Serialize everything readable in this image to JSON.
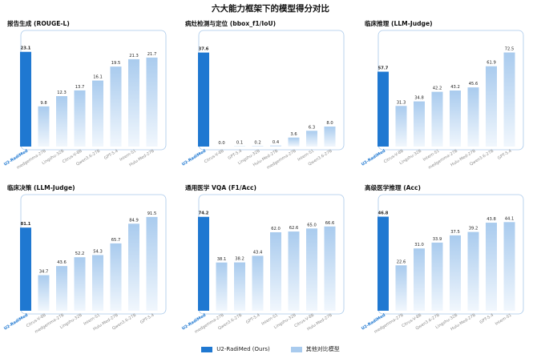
{
  "title": "六大能力框架下的模型得分对比",
  "colors": {
    "ours": "#1f78d1",
    "other_top": "#a9cbee",
    "other_bottom": "#f1f7fd",
    "frame": "#a8c8ea"
  },
  "legend": {
    "ours": "U2-RadiMed (Ours)",
    "other": "其他对比模型"
  },
  "chart_data": [
    {
      "type": "bar",
      "title": "报告生成 (ROUGE-L)",
      "categories": [
        "U2-RadiMed",
        "medgemma-27B",
        "Lingshu-32B",
        "Citrus-V-8B",
        "Qwen3.6-27B",
        "GPT-5.4",
        "Intern-S1",
        "Hulu-Med-27B"
      ],
      "values": [
        23.1,
        9.8,
        12.3,
        13.7,
        16.1,
        19.5,
        21.3,
        21.7
      ],
      "labels": [
        "23.1",
        "9.8",
        "12.3",
        "13.7",
        "16.1",
        "19.5",
        "21.3",
        "21.7"
      ],
      "ylim": [
        0,
        25
      ]
    },
    {
      "type": "bar",
      "title": "病灶检测与定位 (bbox_f1/IoU)",
      "categories": [
        "U2-RadiMed",
        "Citrus-V-8B",
        "GPT-5.4",
        "Lingshu-32B",
        "Hulu-Med-27B",
        "medgemma-27B",
        "Intern-S1",
        "Qwen3.6-27B"
      ],
      "values": [
        37.6,
        0.0,
        0.1,
        0.2,
        0.4,
        3.6,
        6.3,
        8.0
      ],
      "labels": [
        "37.6",
        "0.0",
        "0.1",
        "0.2",
        "0.4",
        "3.6",
        "6.3",
        "8.0"
      ],
      "ylim": [
        0,
        41
      ]
    },
    {
      "type": "bar",
      "title": "临床推理 (LLM-Judge)",
      "categories": [
        "U2-RadiMed",
        "Citrus-V-8B",
        "Lingshu-32B",
        "Intern-S1",
        "medgemma-27B",
        "Hulu-Med-27B",
        "Qwen3.6-27B",
        "GPT-5.4"
      ],
      "values": [
        57.7,
        31.3,
        34.8,
        42.2,
        43.2,
        45.6,
        61.9,
        72.5
      ],
      "labels": [
        "57.7",
        "31.3",
        "34.8",
        "42.2",
        "43.2",
        "45.6",
        "61.9",
        "72.5"
      ],
      "ylim": [
        0,
        79
      ]
    },
    {
      "type": "bar",
      "title": "临床决策 (LLM-Judge)",
      "categories": [
        "U2-RadiMed",
        "Citrus-V-8B",
        "medgemma-27B",
        "Lingshu-32B",
        "Intern-S1",
        "Hulu-Med-27B",
        "Qwen3.6-27B",
        "GPT-5.4"
      ],
      "values": [
        81.1,
        34.7,
        43.6,
        52.2,
        54.3,
        65.7,
        84.9,
        91.5
      ],
      "labels": [
        "81.1",
        "34.7",
        "43.6",
        "52.2",
        "54.3",
        "65.7",
        "84.9",
        "91.5"
      ],
      "ylim": [
        0,
        100
      ]
    },
    {
      "type": "bar",
      "title": "通用医学 VQA (F1/Acc)",
      "categories": [
        "U2-RadiMed",
        "medgemma-27B",
        "Qwen3.6-27B",
        "GPT-5.4",
        "Intern-S1",
        "Lingshu-32B",
        "Citrus-V-8B",
        "Hulu-Med-27B"
      ],
      "values": [
        74.2,
        38.1,
        38.2,
        43.4,
        62.0,
        62.6,
        65.0,
        66.6
      ],
      "labels": [
        "74.2",
        "38.1",
        "38.2",
        "43.4",
        "62.0",
        "62.6",
        "65.0",
        "66.6"
      ],
      "ylim": [
        0,
        81
      ]
    },
    {
      "type": "bar",
      "title": "高级医学推理 (Acc)",
      "categories": [
        "U2-RadiMed",
        "medgemma-27B",
        "Citrus-V-8B",
        "Qwen3.6-27B",
        "Lingshu-32B",
        "Hulu-Med-27B",
        "GPT-5.4",
        "Intern-S1"
      ],
      "values": [
        46.8,
        22.6,
        31.0,
        33.9,
        37.5,
        39.2,
        43.8,
        44.1
      ],
      "labels": [
        "46.8",
        "22.6",
        "31.0",
        "33.9",
        "37.5",
        "39.2",
        "43.8",
        "44.1"
      ],
      "ylim": [
        0,
        51
      ]
    }
  ]
}
